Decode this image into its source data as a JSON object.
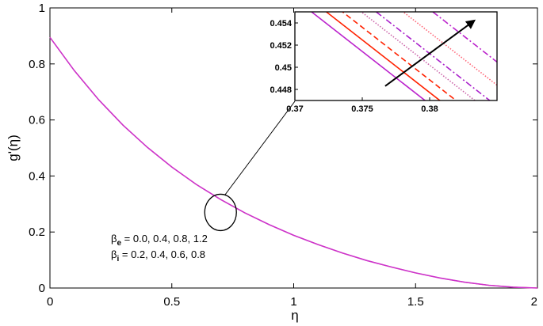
{
  "chart_data": {
    "type": "line",
    "xlabel": "η",
    "ylabel": "g'(η)",
    "xlim": [
      0,
      2
    ],
    "ylim": [
      0,
      1
    ],
    "xticks": [
      "0",
      "0.5",
      "1",
      "1.5",
      "2"
    ],
    "yticks": [
      "0",
      "0.2",
      "0.4",
      "0.6",
      "0.8",
      "1"
    ],
    "grid": false,
    "curve": {
      "color": "#cc33cc",
      "x": [
        0,
        0.1,
        0.2,
        0.3,
        0.4,
        0.5,
        0.6,
        0.7,
        0.8,
        0.9,
        1.0,
        1.1,
        1.2,
        1.3,
        1.4,
        1.5,
        1.6,
        1.7,
        1.8,
        1.9,
        2.0
      ],
      "y": [
        0.895,
        0.776,
        0.672,
        0.581,
        0.502,
        0.432,
        0.37,
        0.316,
        0.268,
        0.226,
        0.188,
        0.155,
        0.125,
        0.098,
        0.075,
        0.054,
        0.036,
        0.021,
        0.01,
        0.003,
        0.0
      ]
    },
    "annotation": {
      "beta_e": "β",
      "beta_e_sub": "e",
      "beta_e_text": " = 0.0, 0.4, 0.8, 1.2",
      "beta_i": "β",
      "beta_i_sub": "i",
      "beta_i_text": " = 0.2, 0.4, 0.6, 0.8",
      "ellipse_center": [
        0.7,
        0.27
      ]
    },
    "inset": {
      "xlim": [
        0.37,
        0.385
      ],
      "ylim": [
        0.447,
        0.455
      ],
      "xticks": [
        "0.37",
        "0.375",
        "0.38"
      ],
      "yticks": [
        "0.448",
        "0.45",
        "0.452",
        "0.454"
      ],
      "lines": [
        {
          "color": "#bb22cc",
          "style": "solid",
          "x0": 0.3705,
          "y0": 0.4557,
          "slope": -0.95
        },
        {
          "color": "#ff2200",
          "style": "solid",
          "x0": 0.3716,
          "y0": 0.4557,
          "slope": -0.95
        },
        {
          "color": "#ff2200",
          "style": "dashed",
          "x0": 0.3728,
          "y0": 0.4557,
          "slope": -0.95
        },
        {
          "color": "#cc66aa",
          "style": "dotted",
          "x0": 0.3742,
          "y0": 0.4557,
          "slope": -0.95
        },
        {
          "color": "#aa22cc",
          "style": "dashdot",
          "x0": 0.3753,
          "y0": 0.4557,
          "slope": -0.95
        },
        {
          "color": "#ff6677",
          "style": "dotted",
          "x0": 0.3773,
          "y0": 0.4557,
          "slope": -0.95
        },
        {
          "color": "#bb22cc",
          "style": "dashdot",
          "x0": 0.3795,
          "y0": 0.4557,
          "slope": -0.95
        }
      ],
      "arrow": {
        "from": [
          0.3767,
          0.4483
        ],
        "to": [
          0.3833,
          0.4542
        ]
      }
    }
  }
}
